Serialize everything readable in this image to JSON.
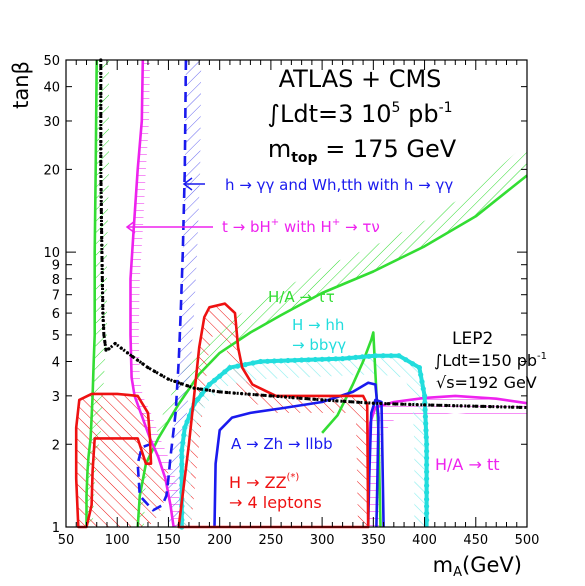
{
  "chart_data": {
    "type": "line",
    "xlabel": "m_A (GeV)",
    "xlabel_main": "m",
    "xlabel_sub": "A",
    "xlabel_unit": "(GeV)",
    "ylabel": "tanβ",
    "xlim": [
      50,
      500
    ],
    "ylim": [
      1,
      50
    ],
    "yscale": "log",
    "grid": false,
    "x_ticks": [
      50,
      100,
      150,
      200,
      250,
      300,
      350,
      400,
      450,
      500
    ],
    "x_tick_labels": [
      "50",
      "100",
      "150",
      "200",
      "250",
      "300",
      "350",
      "400",
      "450",
      "500"
    ],
    "y_ticks": [
      1,
      2,
      3,
      4,
      5,
      6,
      7,
      8,
      9,
      10,
      20,
      30,
      40,
      50
    ],
    "y_tick_labels": [
      "1",
      "2",
      "3",
      "4",
      "5",
      "6",
      "7",
      "8",
      "9",
      "10",
      "20",
      "30",
      "40",
      "50"
    ],
    "header": {
      "line1": "ATLAS + CMS",
      "line2": "∫Ldt=3 10",
      "line2_sup": "5",
      "line2_unit": " pb",
      "line2_unit_sup": "-1",
      "line3_main": "m",
      "line3_sub": "top",
      "line3_rest": " = 175 GeV"
    },
    "annotations": {
      "h_gamgam": "h → γγ and Wh,tth with h → γγ",
      "t_bH": "t → bH",
      "t_bH_sup": "+",
      "t_bH_mid": " with H",
      "t_bH_mid_sup": "+",
      "t_bH_end": " → τν",
      "HA_tautau": "H/A → ττ",
      "H_hh": "H → hh",
      "bbgg": "→ bbγγ",
      "lep2": "LEP2",
      "lep2_lumi": "∫Ldt=150 pb",
      "lep2_lumi_sup": "-1",
      "lep2_sqrts": "√s=192 GeV",
      "A_Zh": "A → Zh → llbb",
      "H_ZZ": "H → ZZ",
      "H_ZZ_sup": "(*)",
      "four_leptons": "→ 4 leptons",
      "HA_tt": "H/A → tt"
    },
    "colors": {
      "green": "#33dd33",
      "magenta": "#ee22ee",
      "blue": "#1a1aee",
      "red": "#ee1111",
      "cyan": "#22dddd",
      "black": "#000000"
    },
    "series": [
      {
        "label": "LEP2",
        "color": "black",
        "style": "dotted",
        "points": [
          [
            84,
            50
          ],
          [
            84,
            20
          ],
          [
            85,
            10
          ],
          [
            86,
            6
          ],
          [
            87,
            5
          ],
          [
            89,
            4.4
          ],
          [
            92,
            4.45
          ],
          [
            98,
            4.65
          ],
          [
            110,
            4.3
          ],
          [
            130,
            3.8
          ],
          [
            150,
            3.45
          ],
          [
            175,
            3.2
          ],
          [
            200,
            3.1
          ],
          [
            250,
            3.0
          ],
          [
            300,
            2.9
          ],
          [
            350,
            2.82
          ],
          [
            400,
            2.78
          ],
          [
            450,
            2.75
          ],
          [
            500,
            2.72
          ]
        ]
      },
      {
        "label": "H/A → ττ (left)",
        "color": "green",
        "style": "solid",
        "points": [
          [
            80,
            50
          ],
          [
            79,
            20
          ],
          [
            78,
            10
          ],
          [
            78,
            5
          ],
          [
            77,
            4
          ],
          [
            76,
            3
          ],
          [
            75,
            2.5
          ],
          [
            74,
            2.1
          ],
          [
            72,
            1.8
          ],
          [
            71,
            1.6
          ],
          [
            70,
            1.3
          ],
          [
            70,
            1.0
          ]
        ]
      },
      {
        "label": "H/A → ττ",
        "color": "green",
        "style": "solid",
        "points": [
          [
            120,
            1.0
          ],
          [
            122,
            1.3
          ],
          [
            128,
            1.7
          ],
          [
            140,
            2.1
          ],
          [
            160,
            2.8
          ],
          [
            180,
            3.6
          ],
          [
            200,
            4.3
          ],
          [
            230,
            5.1
          ],
          [
            260,
            5.9
          ],
          [
            300,
            7.1
          ],
          [
            350,
            8.5
          ],
          [
            400,
            10.5
          ],
          [
            450,
            13.5
          ],
          [
            500,
            19
          ]
        ]
      },
      {
        "label": "t → bH+ with H+ → τν",
        "color": "magenta",
        "style": "solid",
        "points": [
          [
            125,
            50
          ],
          [
            124,
            30
          ],
          [
            120,
            20
          ],
          [
            116,
            12
          ],
          [
            113,
            8
          ],
          [
            113,
            5
          ],
          [
            114,
            3.5
          ],
          [
            117,
            3
          ],
          [
            123,
            2.6
          ],
          [
            132,
            2.1
          ],
          [
            140,
            1.8
          ],
          [
            147,
            1.5
          ],
          [
            152,
            1.2
          ],
          [
            155,
            1.0
          ]
        ]
      },
      {
        "label": "H/A → tt",
        "color": "magenta",
        "style": "solid",
        "points": [
          [
            345,
            1.0
          ],
          [
            345,
            1.8
          ],
          [
            347,
            2.4
          ],
          [
            352,
            2.72
          ],
          [
            370,
            2.85
          ],
          [
            400,
            2.95
          ],
          [
            430,
            3.0
          ],
          [
            470,
            2.93
          ],
          [
            500,
            2.82
          ]
        ]
      },
      {
        "label": "h → γγ and Wh,tth with h → γγ",
        "color": "blue",
        "style": "dashed",
        "points": [
          [
            167,
            50
          ],
          [
            166,
            20
          ],
          [
            164,
            10
          ],
          [
            162,
            6
          ],
          [
            160,
            4
          ],
          [
            157,
            2.6
          ],
          [
            152,
            1.8
          ],
          [
            150,
            1.5
          ],
          [
            148,
            1.3
          ],
          [
            144,
            1.2
          ],
          [
            135,
            1.15
          ],
          [
            122,
            1.3
          ],
          [
            120,
            1.7
          ],
          [
            124,
            1.95
          ],
          [
            132,
            2.0
          ]
        ]
      },
      {
        "label": "A → Zh → llbb",
        "color": "blue",
        "style": "solid",
        "points": [
          [
            195,
            1.0
          ],
          [
            196,
            1.7
          ],
          [
            200,
            2.25
          ],
          [
            212,
            2.5
          ],
          [
            230,
            2.6
          ],
          [
            260,
            2.7
          ],
          [
            300,
            2.85
          ],
          [
            330,
            3.1
          ],
          [
            345,
            3.35
          ],
          [
            352,
            3.3
          ],
          [
            355,
            2.5
          ],
          [
            354,
            1.5
          ],
          [
            353,
            1.0
          ]
        ]
      },
      {
        "label": "A → Zh → llbb (inner)",
        "color": "blue",
        "style": "solid",
        "points": [
          [
            345,
            1.0
          ],
          [
            346,
            1.5
          ],
          [
            348,
            2.6
          ],
          [
            352,
            2.9
          ],
          [
            358,
            2.85
          ],
          [
            360,
            1.0
          ]
        ]
      },
      {
        "label": "H → hh → bbγγ",
        "color": "cyan",
        "style": "dotted",
        "points": [
          [
            163,
            1.0
          ],
          [
            163,
            1.9
          ],
          [
            166,
            2.3
          ],
          [
            175,
            2.8
          ],
          [
            190,
            3.3
          ],
          [
            210,
            3.8
          ],
          [
            240,
            4.0
          ],
          [
            280,
            4.05
          ],
          [
            320,
            4.1
          ],
          [
            352,
            4.2
          ],
          [
            375,
            4.2
          ],
          [
            395,
            3.8
          ],
          [
            400,
            3.0
          ],
          [
            402,
            2.0
          ],
          [
            402,
            1.0
          ]
        ]
      },
      {
        "label": "H → hh (inner)",
        "color": "green",
        "style": "solid",
        "points": [
          [
            300,
            2.2
          ],
          [
            315,
            2.55
          ],
          [
            330,
            3.3
          ],
          [
            340,
            4.0
          ],
          [
            348,
            4.8
          ],
          [
            350,
            5.1
          ],
          [
            355,
            2.2
          ],
          [
            357,
            1.0
          ]
        ]
      },
      {
        "label": "H → ZZ(*) → 4 leptons",
        "color": "red",
        "style": "solid",
        "closed": true,
        "points": [
          [
            62,
            1.0
          ],
          [
            60,
            1.5
          ],
          [
            60,
            2.3
          ],
          [
            63,
            2.9
          ],
          [
            75,
            3.05
          ],
          [
            100,
            3.05
          ],
          [
            120,
            3.0
          ],
          [
            130,
            2.6
          ],
          [
            132,
            2.1
          ],
          [
            133,
            1.7
          ],
          [
            128,
            1.7
          ],
          [
            120,
            2.1
          ],
          [
            100,
            2.1
          ],
          [
            78,
            2.1
          ],
          [
            76,
            1.6
          ],
          [
            75,
            1.2
          ],
          [
            70,
            1.0
          ]
        ]
      },
      {
        "label": "H → ZZ(*) → 4 leptons (right)",
        "color": "red",
        "style": "solid",
        "closed": true,
        "points": [
          [
            160,
            1.0
          ],
          [
            170,
            2.0
          ],
          [
            175,
            3.0
          ],
          [
            180,
            4.5
          ],
          [
            185,
            5.8
          ],
          [
            190,
            6.3
          ],
          [
            205,
            6.5
          ],
          [
            215,
            6.0
          ],
          [
            218,
            4.5
          ],
          [
            222,
            3.8
          ],
          [
            232,
            3.3
          ],
          [
            255,
            3.0
          ],
          [
            290,
            3.0
          ],
          [
            320,
            3.0
          ],
          [
            340,
            3.0
          ],
          [
            344,
            2.8
          ],
          [
            345,
            1.0
          ]
        ]
      }
    ]
  }
}
